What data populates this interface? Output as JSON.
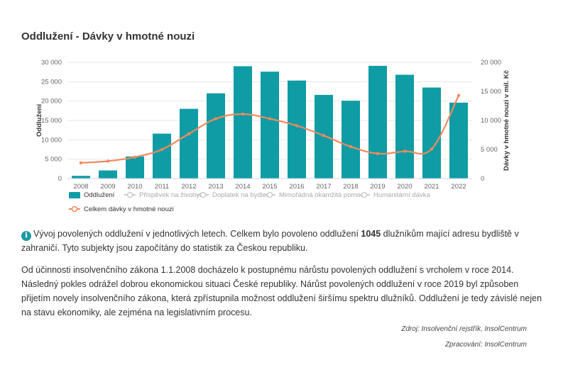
{
  "title": "Oddlužení - Dávky v hmotné nouzi",
  "chart_data": {
    "type": "bar",
    "categories": [
      "2008",
      "2009",
      "2010",
      "2011",
      "2012",
      "2013",
      "2014",
      "2015",
      "2016",
      "2017",
      "2018",
      "2019",
      "2020",
      "2021",
      "2022"
    ],
    "series": [
      {
        "name": "Oddlužení",
        "type": "bar",
        "axis": "left",
        "values": [
          700,
          2100,
          5700,
          11600,
          18000,
          22000,
          29000,
          27600,
          25300,
          21600,
          20100,
          29100,
          26800,
          23500,
          19600
        ]
      },
      {
        "name": "Celkem dávky v hmotné nouzi",
        "type": "line",
        "axis": "right",
        "values": [
          2700,
          3000,
          3700,
          5000,
          7700,
          10300,
          11100,
          10300,
          9100,
          7400,
          5500,
          4300,
          4700,
          5100,
          14300
        ]
      }
    ],
    "ylabel_left": "Oddlužení",
    "ylabel_right": "Dávky v hmotné nouzi v mil. Kč",
    "ylim_left": [
      0,
      30000
    ],
    "ylim_right": [
      0,
      20000
    ],
    "yticks_left": [
      "0",
      "5 000",
      "10 000",
      "15 000",
      "20 000",
      "25 000",
      "30 000"
    ],
    "yticks_right": [
      "0",
      "5 000",
      "10 000",
      "15 000",
      "20 000"
    ],
    "legend": [
      {
        "label": "Oddlužení",
        "active": true,
        "kind": "bar"
      },
      {
        "label": "Příspěvek na živobytí",
        "active": false,
        "kind": "line"
      },
      {
        "label": "Doplatek na bydlení",
        "active": false,
        "kind": "line"
      },
      {
        "label": "Mimořádná okamžitá pomoc",
        "active": false,
        "kind": "line"
      },
      {
        "label": "Humanitární dávka",
        "active": false,
        "kind": "line"
      },
      {
        "label": "Celkem dávky v hmotné nouzi",
        "active": true,
        "kind": "line"
      }
    ],
    "legend_position": "bottom-left",
    "grid": true,
    "colors": {
      "bar": "#0f9ca5",
      "line": "#f08a5d",
      "inactive": "#cccccc",
      "grid": "#e6e6e6"
    }
  },
  "info": {
    "icon": "info-icon",
    "p1_a": "Vývoj povolených oddlužení v jednotlivých letech. Celkem bylo povoleno oddlužení ",
    "p1_strong": "1045",
    "p1_b": " dlužníkům mající adresu bydliště v zahraničí. Tyto subjekty jsou započítány do statistik za Českou republiku.",
    "p2": "Od účinnosti insolvenčního zákona 1.1.2008 docházelo k postupnému nárůstu povolených oddlužení s vrcholem v roce 2014. Následný pokles odrážel dobrou ekonomickou situaci České republiky. Nárůst povolených oddlužení v roce 2019 byl způsoben přijetím novely insolvenčního zákona, která zpřístupnila možnost oddlužení širšímu spektru dlužníků. Oddlužení je tedy závislé nejen na stavu ekonomiky, ale zejména na legislativním procesu."
  },
  "credits": {
    "source": "Zdroj: Insolvenční rejstřík, InsolCentrum",
    "processed": "Zpracování: InsolCentrum"
  }
}
